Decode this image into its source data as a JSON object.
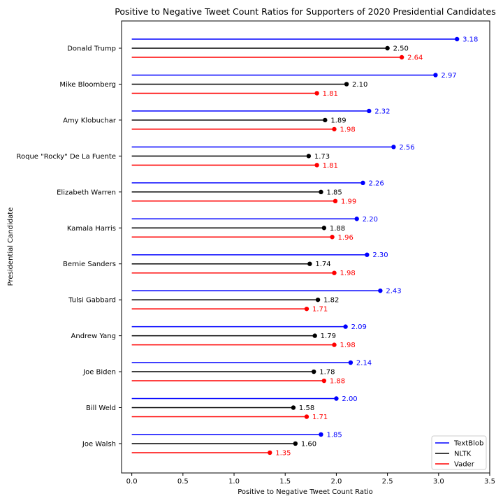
{
  "chart_data": {
    "type": "lollipop",
    "title": "Positive to Negative Tweet Count Ratios for Supporters of 2020 Presidential Candidates",
    "xlabel": "Positive to Negative Tweet Count Ratio",
    "ylabel": "Presidential Candidate",
    "xlim": [
      -0.1,
      3.5
    ],
    "xticks": [
      "0.0",
      "0.5",
      "1.0",
      "1.5",
      "2.0",
      "2.5",
      "3.0",
      "3.5"
    ],
    "grid": false,
    "legend_position": "bottom-right",
    "categories": [
      "Donald Trump",
      "Mike Bloomberg",
      "Amy Klobuchar",
      "Roque \"Rocky\" De La Fuente",
      "Elizabeth Warren",
      "Kamala Harris",
      "Bernie Sanders",
      "Tulsi Gabbard",
      "Andrew Yang",
      "Joe Biden",
      "Bill Weld",
      "Joe Walsh"
    ],
    "series": [
      {
        "name": "TextBlob",
        "color": "#0000ff",
        "values": [
          3.18,
          2.97,
          2.32,
          2.56,
          2.26,
          2.2,
          2.3,
          2.43,
          2.09,
          2.14,
          2.0,
          1.85
        ],
        "labels": [
          "3.18",
          "2.97",
          "2.32",
          "2.56",
          "2.26",
          "2.20",
          "2.30",
          "2.43",
          "2.09",
          "2.14",
          "2.00",
          "1.85"
        ]
      },
      {
        "name": "NLTK",
        "color": "#000000",
        "values": [
          2.5,
          2.1,
          1.89,
          1.73,
          1.85,
          1.88,
          1.74,
          1.82,
          1.79,
          1.78,
          1.58,
          1.6
        ],
        "labels": [
          "2.50",
          "2.10",
          "1.89",
          "1.73",
          "1.85",
          "1.88",
          "1.74",
          "1.82",
          "1.79",
          "1.78",
          "1.58",
          "1.60"
        ]
      },
      {
        "name": "Vader",
        "color": "#ff0000",
        "values": [
          2.64,
          1.81,
          1.98,
          1.81,
          1.99,
          1.96,
          1.98,
          1.71,
          1.98,
          1.88,
          1.71,
          1.35
        ],
        "labels": [
          "2.64",
          "1.81",
          "1.98",
          "1.81",
          "1.99",
          "1.96",
          "1.98",
          "1.71",
          "1.98",
          "1.88",
          "1.71",
          "1.35"
        ]
      }
    ]
  }
}
